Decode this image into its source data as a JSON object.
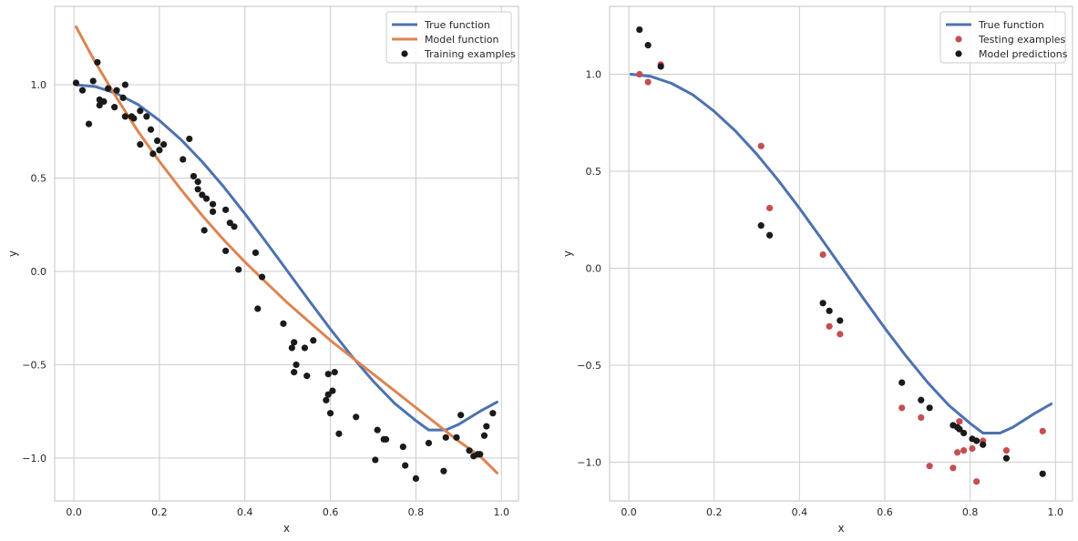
{
  "chart_data": [
    {
      "type": "scatter",
      "title": "",
      "xlabel": "x",
      "ylabel": "y",
      "xlim": [
        -0.045,
        1.04
      ],
      "ylim": [
        -1.23,
        1.42
      ],
      "xticks": [
        0.0,
        0.2,
        0.4,
        0.6,
        0.8,
        1.0
      ],
      "xtick_labels": [
        "0.0",
        "0.2",
        "0.4",
        "0.6",
        "0.8",
        "1.0"
      ],
      "yticks": [
        -1.0,
        -0.5,
        0.0,
        0.5,
        1.0
      ],
      "ytick_labels": [
        "−1.0",
        "−0.5",
        "0.0",
        "0.5",
        "1.0"
      ],
      "grid": true,
      "legend_position": "top-right",
      "legend": [
        "True function",
        "Model function",
        "Training examples"
      ],
      "series": [
        {
          "name": "True function",
          "kind": "line",
          "color": "#4c72b0",
          "points": [
            [
              0.005,
              1.0
            ],
            [
              0.05,
              0.99
            ],
            [
              0.1,
              0.953
            ],
            [
              0.15,
              0.894
            ],
            [
              0.2,
              0.809
            ],
            [
              0.25,
              0.707
            ],
            [
              0.3,
              0.588
            ],
            [
              0.35,
              0.454
            ],
            [
              0.4,
              0.309
            ],
            [
              0.45,
              0.156
            ],
            [
              0.5,
              0.0
            ],
            [
              0.55,
              -0.156
            ],
            [
              0.6,
              -0.309
            ],
            [
              0.65,
              -0.454
            ],
            [
              0.7,
              -0.588
            ],
            [
              0.75,
              -0.707
            ],
            [
              0.8,
              -0.8
            ],
            [
              0.83,
              -0.85
            ],
            [
              0.87,
              -0.85
            ],
            [
              0.9,
              -0.82
            ],
            [
              0.95,
              -0.75
            ],
            [
              0.99,
              -0.7
            ]
          ]
        },
        {
          "name": "Model function",
          "kind": "line",
          "color": "#dd8452",
          "points": [
            [
              0.005,
              1.31
            ],
            [
              0.05,
              1.12
            ],
            [
              0.1,
              0.93
            ],
            [
              0.15,
              0.75
            ],
            [
              0.2,
              0.59
            ],
            [
              0.25,
              0.44
            ],
            [
              0.3,
              0.3
            ],
            [
              0.35,
              0.17
            ],
            [
              0.4,
              0.05
            ],
            [
              0.45,
              -0.06
            ],
            [
              0.5,
              -0.17
            ],
            [
              0.55,
              -0.27
            ],
            [
              0.6,
              -0.37
            ],
            [
              0.65,
              -0.46
            ],
            [
              0.7,
              -0.55
            ],
            [
              0.75,
              -0.64
            ],
            [
              0.8,
              -0.73
            ],
            [
              0.85,
              -0.82
            ],
            [
              0.9,
              -0.91
            ],
            [
              0.95,
              -0.99
            ],
            [
              0.99,
              -1.08
            ]
          ]
        },
        {
          "name": "Training examples",
          "kind": "scatter",
          "color": "#1a1a1a",
          "points": [
            [
              0.005,
              1.01
            ],
            [
              0.02,
              0.97
            ],
            [
              0.035,
              0.79
            ],
            [
              0.045,
              1.02
            ],
            [
              0.055,
              1.12
            ],
            [
              0.06,
              0.92
            ],
            [
              0.06,
              0.89
            ],
            [
              0.07,
              0.91
            ],
            [
              0.08,
              0.98
            ],
            [
              0.095,
              0.88
            ],
            [
              0.1,
              0.97
            ],
            [
              0.115,
              0.93
            ],
            [
              0.12,
              1.0
            ],
            [
              0.12,
              0.83
            ],
            [
              0.135,
              0.83
            ],
            [
              0.14,
              0.82
            ],
            [
              0.155,
              0.86
            ],
            [
              0.155,
              0.68
            ],
            [
              0.17,
              0.83
            ],
            [
              0.18,
              0.76
            ],
            [
              0.185,
              0.63
            ],
            [
              0.195,
              0.7
            ],
            [
              0.2,
              0.65
            ],
            [
              0.21,
              0.68
            ],
            [
              0.255,
              0.6
            ],
            [
              0.27,
              0.71
            ],
            [
              0.28,
              0.51
            ],
            [
              0.29,
              0.44
            ],
            [
              0.29,
              0.48
            ],
            [
              0.3,
              0.41
            ],
            [
              0.31,
              0.39
            ],
            [
              0.305,
              0.22
            ],
            [
              0.325,
              0.32
            ],
            [
              0.325,
              0.36
            ],
            [
              0.355,
              0.33
            ],
            [
              0.355,
              0.11
            ],
            [
              0.365,
              0.26
            ],
            [
              0.375,
              0.24
            ],
            [
              0.385,
              0.01
            ],
            [
              0.425,
              0.1
            ],
            [
              0.43,
              -0.2
            ],
            [
              0.44,
              -0.03
            ],
            [
              0.49,
              -0.28
            ],
            [
              0.51,
              -0.41
            ],
            [
              0.515,
              -0.38
            ],
            [
              0.515,
              -0.54
            ],
            [
              0.52,
              -0.5
            ],
            [
              0.54,
              -0.41
            ],
            [
              0.545,
              -0.56
            ],
            [
              0.56,
              -0.37
            ],
            [
              0.59,
              -0.69
            ],
            [
              0.595,
              -0.66
            ],
            [
              0.595,
              -0.55
            ],
            [
              0.6,
              -0.76
            ],
            [
              0.605,
              -0.64
            ],
            [
              0.61,
              -0.54
            ],
            [
              0.62,
              -0.87
            ],
            [
              0.66,
              -0.78
            ],
            [
              0.705,
              -1.01
            ],
            [
              0.71,
              -0.85
            ],
            [
              0.725,
              -0.9
            ],
            [
              0.73,
              -0.9
            ],
            [
              0.77,
              -0.94
            ],
            [
              0.775,
              -1.04
            ],
            [
              0.8,
              -1.11
            ],
            [
              0.83,
              -0.92
            ],
            [
              0.865,
              -1.07
            ],
            [
              0.87,
              -0.89
            ],
            [
              0.895,
              -0.89
            ],
            [
              0.905,
              -0.77
            ],
            [
              0.925,
              -0.96
            ],
            [
              0.935,
              -0.99
            ],
            [
              0.945,
              -0.98
            ],
            [
              0.95,
              -0.98
            ],
            [
              0.96,
              -0.88
            ],
            [
              0.965,
              -0.83
            ],
            [
              0.98,
              -0.76
            ]
          ]
        }
      ]
    },
    {
      "type": "scatter",
      "title": "",
      "xlabel": "x",
      "ylabel": "y",
      "xlim": [
        -0.045,
        1.04
      ],
      "ylim": [
        -1.2,
        1.35
      ],
      "xticks": [
        0.0,
        0.2,
        0.4,
        0.6,
        0.8,
        1.0
      ],
      "xtick_labels": [
        "0.0",
        "0.2",
        "0.4",
        "0.6",
        "0.8",
        "1.0"
      ],
      "yticks": [
        -1.0,
        -0.5,
        0.0,
        0.5,
        1.0
      ],
      "ytick_labels": [
        "−1.0",
        "−0.5",
        "0.0",
        "0.5",
        "1.0"
      ],
      "grid": true,
      "legend_position": "top-right",
      "legend": [
        "True function",
        "Testing examples",
        "Model predictions"
      ],
      "series": [
        {
          "name": "True function",
          "kind": "line",
          "color": "#4c72b0",
          "points": [
            [
              0.005,
              1.0
            ],
            [
              0.05,
              0.99
            ],
            [
              0.1,
              0.953
            ],
            [
              0.15,
              0.894
            ],
            [
              0.2,
              0.809
            ],
            [
              0.25,
              0.707
            ],
            [
              0.3,
              0.588
            ],
            [
              0.35,
              0.454
            ],
            [
              0.4,
              0.309
            ],
            [
              0.45,
              0.156
            ],
            [
              0.5,
              0.0
            ],
            [
              0.55,
              -0.156
            ],
            [
              0.6,
              -0.309
            ],
            [
              0.65,
              -0.454
            ],
            [
              0.7,
              -0.588
            ],
            [
              0.75,
              -0.707
            ],
            [
              0.8,
              -0.8
            ],
            [
              0.83,
              -0.85
            ],
            [
              0.87,
              -0.85
            ],
            [
              0.9,
              -0.82
            ],
            [
              0.95,
              -0.75
            ],
            [
              0.99,
              -0.7
            ]
          ]
        },
        {
          "name": "Testing examples",
          "kind": "scatter",
          "color": "#c44e52",
          "points": [
            [
              0.025,
              1.0
            ],
            [
              0.045,
              0.96
            ],
            [
              0.075,
              1.05
            ],
            [
              0.31,
              0.63
            ],
            [
              0.33,
              0.31
            ],
            [
              0.455,
              0.07
            ],
            [
              0.47,
              -0.3
            ],
            [
              0.495,
              -0.34
            ],
            [
              0.64,
              -0.72
            ],
            [
              0.685,
              -0.77
            ],
            [
              0.705,
              -1.02
            ],
            [
              0.76,
              -1.03
            ],
            [
              0.77,
              -0.95
            ],
            [
              0.775,
              -0.79
            ],
            [
              0.785,
              -0.94
            ],
            [
              0.805,
              -0.93
            ],
            [
              0.815,
              -1.1
            ],
            [
              0.83,
              -0.89
            ],
            [
              0.885,
              -0.94
            ],
            [
              0.97,
              -0.84
            ]
          ]
        },
        {
          "name": "Model predictions",
          "kind": "scatter",
          "color": "#1a1a1a",
          "points": [
            [
              0.025,
              1.23
            ],
            [
              0.045,
              1.15
            ],
            [
              0.075,
              1.04
            ],
            [
              0.31,
              0.22
            ],
            [
              0.33,
              0.17
            ],
            [
              0.455,
              -0.18
            ],
            [
              0.47,
              -0.22
            ],
            [
              0.495,
              -0.27
            ],
            [
              0.64,
              -0.59
            ],
            [
              0.685,
              -0.68
            ],
            [
              0.705,
              -0.72
            ],
            [
              0.76,
              -0.81
            ],
            [
              0.77,
              -0.82
            ],
            [
              0.775,
              -0.83
            ],
            [
              0.785,
              -0.85
            ],
            [
              0.805,
              -0.88
            ],
            [
              0.815,
              -0.89
            ],
            [
              0.83,
              -0.91
            ],
            [
              0.885,
              -0.98
            ],
            [
              0.97,
              -1.06
            ]
          ]
        }
      ]
    }
  ]
}
